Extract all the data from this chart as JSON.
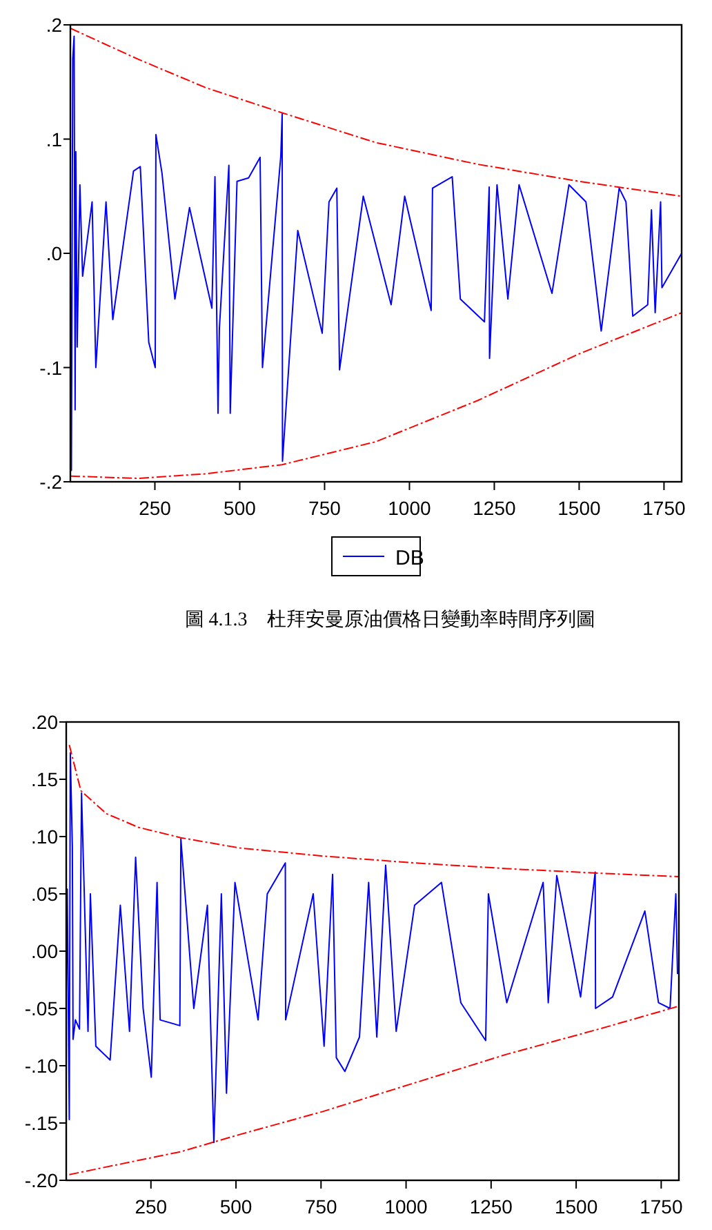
{
  "chart_data": [
    {
      "type": "line",
      "xlim": [
        1,
        1802
      ],
      "ylim": [
        -0.2,
        0.2
      ],
      "xticks": [
        250,
        500,
        750,
        1000,
        1250,
        1500,
        1750
      ],
      "yticks": [
        {
          "value": -0.2,
          "label": "-.2"
        },
        {
          "value": -0.1,
          "label": "-.1"
        },
        {
          "value": 0,
          "label": ".0"
        },
        {
          "value": 0.1,
          "label": ".1"
        },
        {
          "value": 0.2,
          "label": ".2"
        }
      ],
      "legend": "bottom",
      "annotations": [
        "圖 4.1.3　杜拜安曼原油價格日變動率時間序列圖"
      ],
      "series": [
        {
          "name": "DB",
          "color": "#0000ff",
          "x": [
            1,
            4,
            8,
            12,
            15,
            17,
            21,
            29,
            37,
            65,
            76,
            106,
            126,
            187,
            207,
            232,
            251,
            253,
            271,
            309,
            352,
            418,
            427,
            436,
            440,
            468,
            472,
            492,
            526,
            560,
            567,
            621,
            625,
            626,
            671,
            743,
            763,
            786,
            794,
            864,
            946,
            986,
            1064,
            1068,
            1126,
            1150,
            1221,
            1235,
            1236,
            1258,
            1290,
            1323,
            1420,
            1470,
            1520,
            1565,
            1618,
            1638,
            1658,
            1702,
            1713,
            1724,
            1740,
            1744,
            1802
          ],
          "values": [
            0.0,
            -0.19,
            0.17,
            0.19,
            -0.137,
            0.089,
            -0.082,
            0.06,
            -0.02,
            0.045,
            -0.1,
            0.045,
            -0.058,
            0.072,
            0.076,
            -0.078,
            -0.1,
            0.104,
            0.07,
            -0.04,
            0.04,
            -0.048,
            0.067,
            -0.14,
            -0.066,
            0.077,
            -0.14,
            0.063,
            0.066,
            0.084,
            -0.1,
            0.085,
            0.122,
            -0.182,
            0.02,
            -0.07,
            0.045,
            0.057,
            -0.102,
            0.05,
            -0.045,
            0.05,
            -0.05,
            0.057,
            0.067,
            -0.04,
            -0.06,
            0.058,
            -0.092,
            0.06,
            -0.04,
            0.06,
            -0.035,
            0.06,
            0.045,
            -0.068,
            0.057,
            0.045,
            -0.055,
            -0.045,
            0.038,
            -0.052,
            0.045,
            -0.03,
            0.0
          ]
        },
        {
          "color": "#ff0000",
          "line_style": "dashed",
          "x": [
            1,
            200,
            400,
            625,
            900,
            1200,
            1500,
            1802
          ],
          "values": [
            0.197,
            0.17,
            0.145,
            0.123,
            0.097,
            0.078,
            0.063,
            0.05
          ]
        },
        {
          "color": "#ff0000",
          "line_style": "dashed",
          "x": [
            1,
            200,
            400,
            625,
            900,
            1200,
            1500,
            1802
          ],
          "values": [
            -0.195,
            -0.197,
            -0.193,
            -0.185,
            -0.165,
            -0.129,
            -0.088,
            -0.052
          ]
        }
      ]
    },
    {
      "type": "line",
      "xlim": [
        1,
        1802
      ],
      "ylim": [
        -0.2,
        0.2
      ],
      "xticks": [
        250,
        500,
        750,
        1000,
        1250,
        1500,
        1750
      ],
      "yticks": [
        {
          "value": -0.2,
          "label": "-.20"
        },
        {
          "value": -0.15,
          "label": "-.15"
        },
        {
          "value": -0.1,
          "label": "-.10"
        },
        {
          "value": -0.05,
          "label": "-.05"
        },
        {
          "value": 0,
          "label": ".00"
        },
        {
          "value": 0.05,
          "label": ".05"
        },
        {
          "value": 0.1,
          "label": ".10"
        },
        {
          "value": 0.15,
          "label": ".15"
        },
        {
          "value": 0.2,
          "label": ".20"
        }
      ],
      "series": [
        {
          "color": "#0000ff",
          "x": [
            1,
            4,
            10,
            13,
            19,
            21,
            28,
            40,
            46,
            65,
            72,
            88,
            130,
            160,
            187,
            205,
            227,
            251,
            268,
            277,
            335,
            338,
            376,
            416,
            435,
            457,
            472,
            497,
            565,
            592,
            645,
            646,
            727,
            759,
            784,
            795,
            820,
            863,
            890,
            914,
            940,
            971,
            1025,
            1104,
            1161,
            1234,
            1242,
            1296,
            1403,
            1418,
            1443,
            1513,
            1556,
            1557,
            1607,
            1702,
            1742,
            1776,
            1793,
            1798
          ],
          "values": [
            -0.035,
            0.054,
            -0.147,
            0.173,
            0.091,
            -0.077,
            -0.06,
            -0.068,
            0.138,
            -0.07,
            0.05,
            -0.083,
            -0.095,
            0.04,
            -0.07,
            0.082,
            -0.05,
            -0.11,
            0.06,
            -0.06,
            -0.065,
            0.098,
            -0.05,
            0.04,
            -0.167,
            0.05,
            -0.124,
            0.06,
            -0.06,
            0.05,
            0.077,
            -0.06,
            0.05,
            -0.083,
            0.067,
            -0.093,
            -0.105,
            -0.075,
            0.06,
            -0.075,
            0.075,
            -0.07,
            0.04,
            0.06,
            -0.045,
            -0.078,
            0.05,
            -0.045,
            0.06,
            -0.045,
            0.066,
            -0.04,
            0.069,
            -0.05,
            -0.04,
            0.035,
            -0.045,
            -0.05,
            0.05,
            -0.02
          ]
        },
        {
          "color": "#ff0000",
          "line_style": "dashed",
          "x": [
            10,
            44,
            119,
            214,
            338,
            511,
            755,
            1025,
            1296,
            1567,
            1802
          ],
          "values": [
            0.18,
            0.14,
            0.12,
            0.108,
            0.099,
            0.09,
            0.083,
            0.077,
            0.072,
            0.068,
            0.065
          ]
        },
        {
          "color": "#ff0000",
          "line_style": "dashed",
          "x": [
            10,
            338,
            511,
            755,
            1025,
            1296,
            1567,
            1802
          ],
          "values": [
            -0.195,
            -0.175,
            -0.16,
            -0.14,
            -0.115,
            -0.09,
            -0.068,
            -0.048
          ]
        }
      ]
    }
  ]
}
